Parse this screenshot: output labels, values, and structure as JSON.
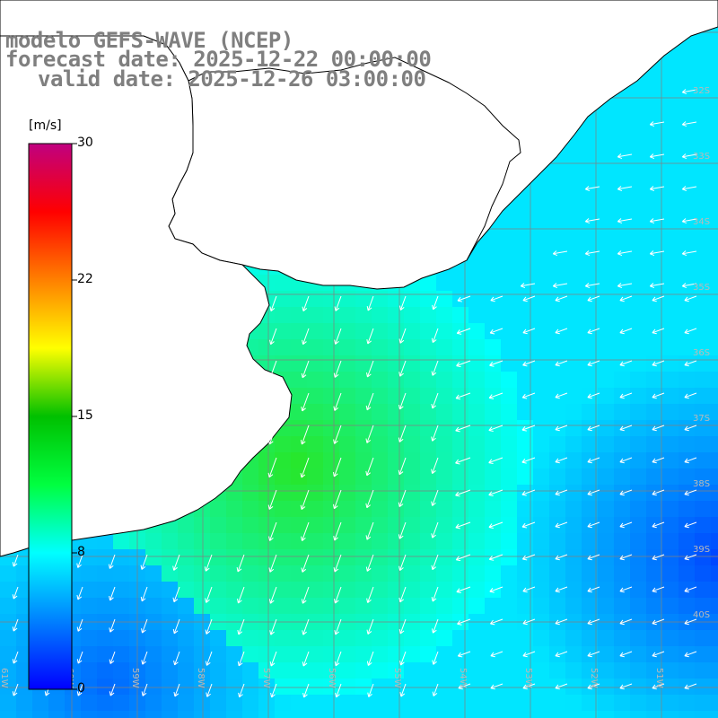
{
  "title": {
    "line1": "modelo GEFS-WAVE (NCEP)",
    "line2": "forecast date: 2025-12-22 00:00:00",
    "line3": "valid date: 2025-12-26 03:00:00"
  },
  "legend": {
    "unit": "[m/s]",
    "ticks": [
      "30",
      "22",
      "15",
      "8",
      "0"
    ],
    "colors": [
      "#0000ff",
      "#0080ff",
      "#00ffff",
      "#00ff40",
      "#00c000",
      "#ffff00",
      "#ff8000",
      "#ff0000",
      "#c00080"
    ]
  },
  "lat_labels": [
    "32S",
    "33S",
    "34S",
    "35S",
    "36S",
    "37S",
    "38S",
    "39S",
    "40S"
  ],
  "lon_labels": [
    "61W",
    "60W",
    "59W",
    "58W",
    "57W",
    "56W",
    "55W",
    "54W",
    "53W",
    "52W",
    "51W"
  ],
  "colors": {
    "land": "#ffffff",
    "coast": "#000000",
    "grid": "#808080",
    "arrows": "#ffffff",
    "title": "#7f7f7f"
  }
}
